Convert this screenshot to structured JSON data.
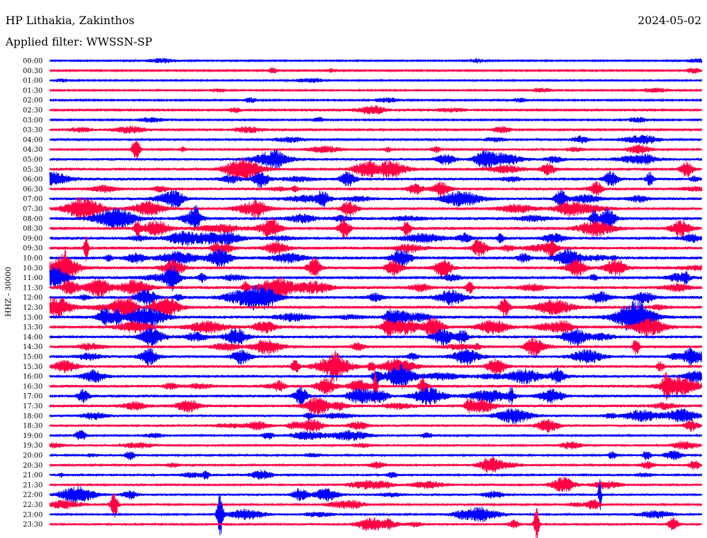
{
  "header": {
    "station": "HP Lithakia, Zakinthos",
    "date": "2024-05-02",
    "filter": "Applied filter: WWSSN-SP",
    "channel": "HHZ - 30000"
  },
  "colors": {
    "trace_a": "#0000ff",
    "trace_b": "#ff0044"
  },
  "chart_data": {
    "type": "helicorder",
    "rows": [
      "00:00",
      "00:30",
      "01:00",
      "01:30",
      "02:00",
      "02:30",
      "03:00",
      "03:30",
      "04:00",
      "04:30",
      "05:00",
      "05:30",
      "06:00",
      "06:30",
      "07:00",
      "07:30",
      "08:00",
      "08:30",
      "09:00",
      "09:30",
      "10:00",
      "10:30",
      "11:00",
      "11:30",
      "12:00",
      "12:30",
      "13:00",
      "13:30",
      "14:00",
      "14:30",
      "15:00",
      "15:30",
      "16:00",
      "16:30",
      "17:00",
      "17:30",
      "18:00",
      "18:30",
      "19:00",
      "19:30",
      "20:00",
      "20:30",
      "21:00",
      "21:30",
      "22:00",
      "22:30",
      "23:00",
      "23:30"
    ],
    "row_colors": [
      "trace_a",
      "trace_b"
    ],
    "activity_level": [
      0.1,
      0.15,
      0.1,
      0.1,
      0.15,
      0.2,
      0.15,
      0.2,
      0.3,
      0.4,
      0.7,
      0.8,
      0.8,
      0.8,
      0.8,
      0.8,
      0.9,
      0.9,
      0.9,
      0.9,
      0.9,
      0.9,
      0.9,
      0.9,
      0.9,
      0.9,
      0.9,
      0.9,
      0.8,
      0.8,
      0.8,
      0.8,
      0.8,
      0.8,
      0.8,
      0.8,
      0.6,
      0.5,
      0.4,
      0.4,
      0.4,
      0.4,
      0.4,
      0.4,
      0.5,
      0.4,
      0.4,
      0.5
    ]
  }
}
